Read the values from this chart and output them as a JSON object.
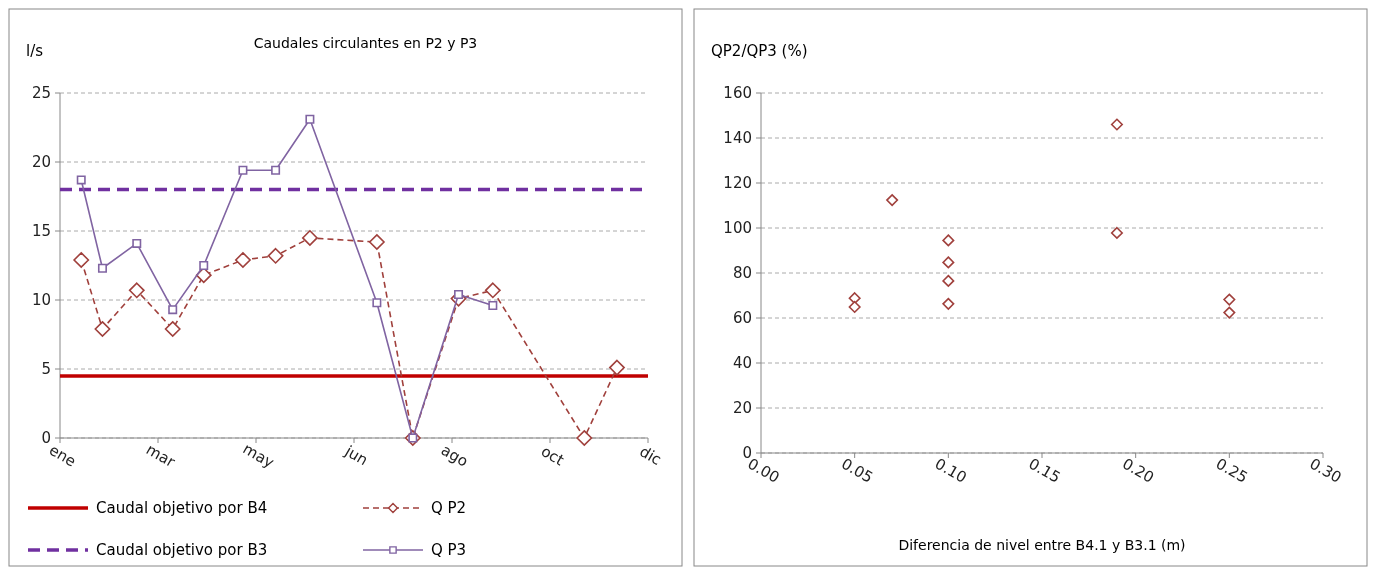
{
  "chart_data": [
    {
      "type": "line",
      "title": "Caudales circulantes en P2 y P3",
      "ylabel": "l/s",
      "xlim": [
        "--01-01",
        "--12-27"
      ],
      "xticks": [
        {
          "value": "--01-01",
          "label": "ene"
        },
        {
          "value": "--03-02",
          "label": "mar"
        },
        {
          "value": "--05-01",
          "label": "may"
        },
        {
          "value": "--06-30",
          "label": "jun"
        },
        {
          "value": "--08-29",
          "label": "ago"
        },
        {
          "value": "--10-28",
          "label": "oct"
        },
        {
          "value": "--12-27",
          "label": "dic"
        }
      ],
      "ylim": [
        0,
        25
      ],
      "yticks": [
        0,
        5,
        10,
        15,
        20,
        25
      ],
      "grid": "y",
      "legend": "bottom",
      "series": [
        {
          "name": "Q P2",
          "color": "#a0403c",
          "marker": "diamond",
          "line_style": "dashed",
          "x": [
            "--01-14",
            "--01-27",
            "--02-17",
            "--03-11",
            "--03-30",
            "--04-23",
            "--05-13",
            "--06-03",
            "--07-14",
            "--08-05",
            "--09-02",
            "--09-23",
            "--11-18",
            "--12-08"
          ],
          "values": [
            12.9,
            7.9,
            10.7,
            7.9,
            11.8,
            12.9,
            13.2,
            14.5,
            14.2,
            0,
            10.1,
            10.7,
            0,
            5.1
          ]
        },
        {
          "name": "Q P3",
          "color": "#8064a2",
          "marker": "square",
          "line_style": "solid",
          "x": [
            "--01-14",
            "--01-27",
            "--02-17",
            "--03-11",
            "--03-30",
            "--04-23",
            "--05-13",
            "--06-03",
            "--07-14",
            "--08-05",
            "--09-02",
            "--09-23"
          ],
          "values": [
            18.7,
            12.3,
            14.1,
            9.3,
            12.5,
            19.4,
            19.4,
            23.1,
            9.8,
            0,
            10.4,
            9.6
          ]
        }
      ],
      "ref_lines": [
        {
          "axis": "y",
          "value": 4.5,
          "label": "Caudal objetivo por B4",
          "color": "#c00000",
          "line_style": "solid"
        },
        {
          "axis": "y",
          "value": 18,
          "label": "Caudal objetivo por B3",
          "color": "#7030a0",
          "line_style": "dashed"
        }
      ]
    },
    {
      "type": "scatter",
      "ylabel": "QP2/QP3 (%)",
      "xlabel": "Diferencia de nivel entre B4.1 y B3.1 (m)",
      "xlim": [
        0,
        0.3
      ],
      "xticks": [
        {
          "value": 0,
          "label": "0.00"
        },
        {
          "value": 0.05,
          "label": "0.05"
        },
        {
          "value": 0.1,
          "label": "0.10"
        },
        {
          "value": 0.15,
          "label": "0.15"
        },
        {
          "value": 0.2,
          "label": "0.20"
        },
        {
          "value": 0.25,
          "label": "0.25"
        },
        {
          "value": 0.3,
          "label": "0.30"
        }
      ],
      "ylim": [
        0,
        160
      ],
      "yticks": [
        0,
        20,
        40,
        60,
        80,
        100,
        120,
        140,
        160
      ],
      "grid": "y",
      "marker": "diamond",
      "series": [
        {
          "color": "#a0403c",
          "x": [
            0.05,
            0.05,
            0.07,
            0.1,
            0.1,
            0.1,
            0.1,
            0.19,
            0.19,
            0.25,
            0.25
          ],
          "values": [
            68.8,
            64.9,
            112.4,
            94.5,
            84.7,
            76.5,
            66.3,
            146,
            97.8,
            68.2,
            62.4
          ]
        }
      ]
    }
  ]
}
